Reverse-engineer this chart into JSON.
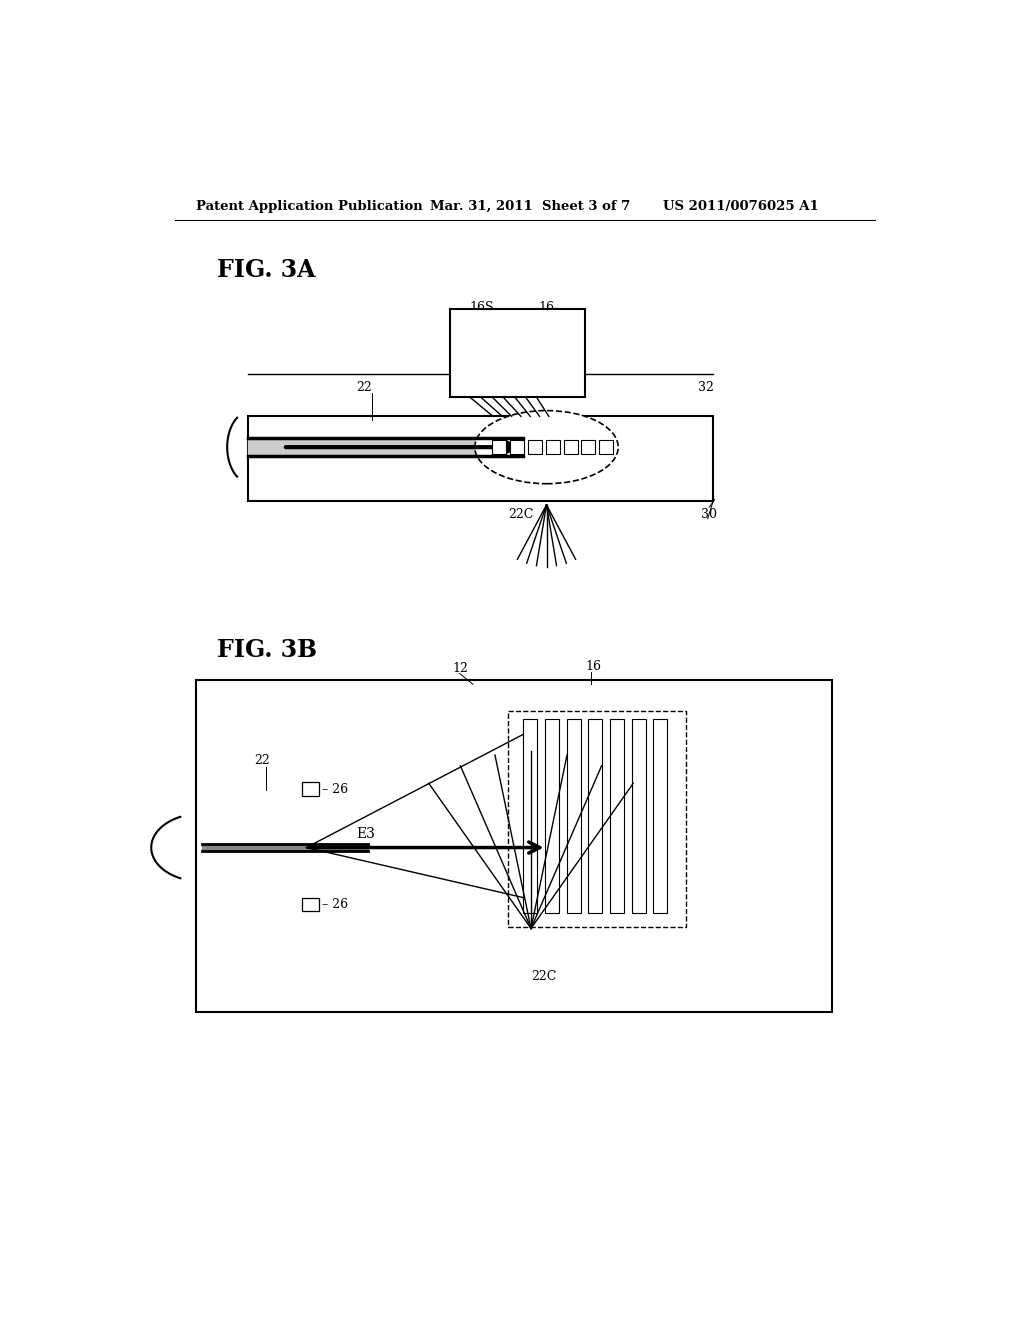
{
  "bg_color": "#ffffff",
  "header_left": "Patent Application Publication",
  "header_mid": "Mar. 31, 2011  Sheet 3 of 7",
  "header_right": "US 2011/0076025 A1"
}
